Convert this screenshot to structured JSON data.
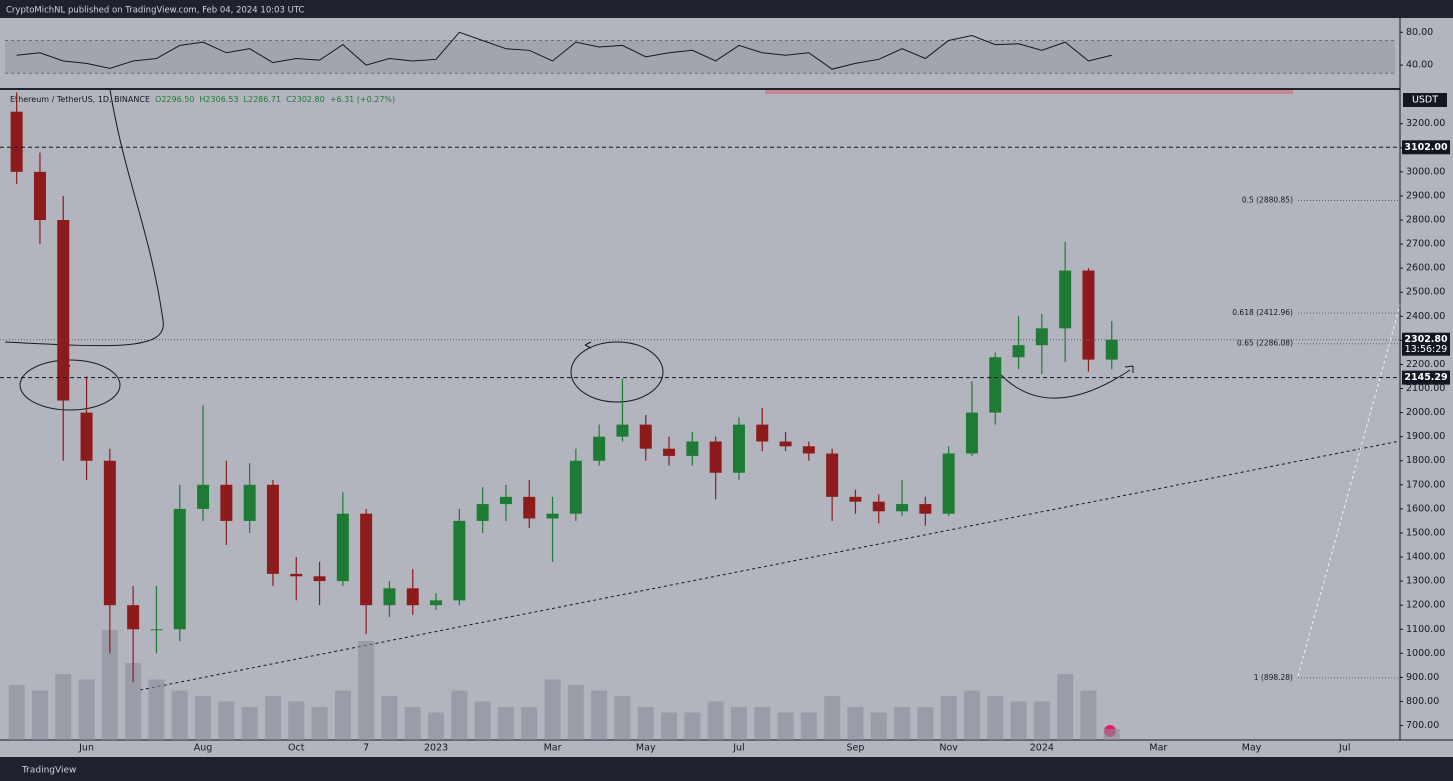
{
  "header": {
    "byline": "CryptoMichNL published on TradingView.com, Feb 04, 2024 10:03 UTC"
  },
  "footer": {
    "brand": "TradingView"
  },
  "chart_data": {
    "type": "candlestick",
    "legend": {
      "symbol": "Ethereum / TetherUS, 1D, BINANCE",
      "ohlc": [
        "O2296.50",
        "H2306.53",
        "L2286.71",
        "C2302.80",
        "+6.31 (+0.27%)"
      ]
    },
    "axis_unit": "USDT",
    "categories": [
      null,
      null,
      null,
      "Jun",
      null,
      null,
      null,
      null,
      "Aug",
      null,
      null,
      null,
      "Oct",
      null,
      null,
      "7",
      null,
      null,
      "2023",
      null,
      null,
      null,
      null,
      "Mar",
      null,
      null,
      null,
      "May",
      null,
      null,
      null,
      "Jul",
      null,
      null,
      null,
      null,
      "Sep",
      null,
      null,
      null,
      "Nov",
      null,
      null,
      null,
      "2024",
      null,
      null,
      null,
      null,
      "Mar",
      null,
      null,
      null,
      "May",
      null,
      null,
      null,
      "Jul",
      null,
      null
    ],
    "open": [
      3250,
      3000,
      2800,
      2000,
      1800,
      1200,
      1100,
      1100,
      1600,
      1700,
      1550,
      1700,
      1330,
      1320,
      1300,
      1580,
      1200,
      1270,
      1200,
      1220,
      1550,
      1620,
      1650,
      1560,
      1580,
      1800,
      1900,
      1950,
      1850,
      1820,
      1880,
      1750,
      1950,
      1880,
      1860,
      1830,
      1650,
      1630,
      1590,
      1620,
      1580,
      1830,
      2000,
      2230,
      2280,
      2350,
      2590,
      2220,
      null,
      null,
      null,
      null,
      null,
      null,
      null,
      null,
      null,
      null,
      null,
      null
    ],
    "high": [
      3330,
      3080,
      2900,
      2150,
      1850,
      1280,
      1280,
      1700,
      2030,
      1800,
      1790,
      1720,
      1400,
      1380,
      1670,
      1600,
      1300,
      1350,
      1250,
      1600,
      1690,
      1700,
      1720,
      1650,
      1850,
      1950,
      2140,
      1990,
      1900,
      1920,
      1900,
      1980,
      2020,
      1920,
      1880,
      1850,
      1680,
      1660,
      1720,
      1650,
      1860,
      2130,
      2250,
      2400,
      2410,
      2710,
      2600,
      2380,
      null,
      null,
      null,
      null,
      null,
      null,
      null,
      null,
      null,
      null,
      null,
      null
    ],
    "low": [
      2950,
      2700,
      1800,
      1720,
      1000,
      880,
      1000,
      1050,
      1550,
      1450,
      1500,
      1280,
      1220,
      1200,
      1280,
      1080,
      1150,
      1160,
      1180,
      1200,
      1500,
      1550,
      1520,
      1380,
      1550,
      1780,
      1880,
      1800,
      1780,
      1780,
      1640,
      1720,
      1840,
      1840,
      1800,
      1550,
      1580,
      1540,
      1570,
      1530,
      1570,
      1820,
      1950,
      2180,
      2160,
      2210,
      2170,
      2180,
      null,
      null,
      null,
      null,
      null,
      null,
      null,
      null,
      null,
      null,
      null,
      null
    ],
    "close": [
      3000,
      2800,
      2050,
      1800,
      1200,
      1100,
      1100,
      1600,
      1700,
      1550,
      1700,
      1330,
      1320,
      1300,
      1580,
      1200,
      1270,
      1200,
      1220,
      1550,
      1620,
      1650,
      1560,
      1580,
      1800,
      1900,
      1950,
      1850,
      1820,
      1880,
      1750,
      1950,
      1880,
      1860,
      1830,
      1650,
      1630,
      1590,
      1620,
      1580,
      1830,
      2000,
      2230,
      2280,
      2350,
      2590,
      2220,
      2302.8,
      null,
      null,
      null,
      null,
      null,
      null,
      null,
      null,
      null,
      null,
      null,
      null
    ],
    "volume": [
      50,
      45,
      60,
      55,
      100,
      70,
      55,
      45,
      40,
      35,
      30,
      40,
      35,
      30,
      45,
      90,
      40,
      30,
      25,
      45,
      35,
      30,
      30,
      55,
      50,
      45,
      40,
      30,
      25,
      25,
      35,
      30,
      30,
      25,
      25,
      40,
      30,
      25,
      30,
      30,
      40,
      45,
      40,
      35,
      35,
      60,
      45,
      10,
      null,
      null,
      null,
      null,
      null,
      null,
      null,
      null,
      null,
      null,
      null,
      null
    ],
    "up_color": "#1e7b34",
    "down_color": "#8e1b1b",
    "volume_color": "#8a8e98",
    "ylim": [
      640,
      3340
    ],
    "yticks": [
      {
        "value": 700,
        "label": "700.00"
      },
      {
        "value": 800,
        "label": "800.00"
      },
      {
        "value": 900,
        "label": "900.00"
      },
      {
        "value": 1000,
        "label": "1000.00"
      },
      {
        "value": 1100,
        "label": "1100.00"
      },
      {
        "value": 1200,
        "label": "1200.00"
      },
      {
        "value": 1300,
        "label": "1300.00"
      },
      {
        "value": 1400,
        "label": "1400.00"
      },
      {
        "value": 1500,
        "label": "1500.00"
      },
      {
        "value": 1600,
        "label": "1600.00"
      },
      {
        "value": 1700,
        "label": "1700.00"
      },
      {
        "value": 1800,
        "label": "1800.00"
      },
      {
        "value": 1900,
        "label": "1900.00"
      },
      {
        "value": 2000,
        "label": "2000.00"
      },
      {
        "value": 2100,
        "label": "2100.00"
      },
      {
        "value": 2200,
        "label": "2200.00"
      },
      {
        "value": 2300,
        "label": "2300.00"
      },
      {
        "value": 2400,
        "label": "2400.00"
      },
      {
        "value": 2500,
        "label": "2500.00"
      },
      {
        "value": 2600,
        "label": "2600.00"
      },
      {
        "value": 2700,
        "label": "2700.00"
      },
      {
        "value": 2800,
        "label": "2800.00"
      },
      {
        "value": 2900,
        "label": "2900.00"
      },
      {
        "value": 3000,
        "label": "3000.00"
      },
      {
        "value": 3100,
        "label": "3100.00"
      },
      {
        "value": 3200,
        "label": "3200.00"
      }
    ],
    "hlines": [
      {
        "value": 3102,
        "label": "3102.00"
      },
      {
        "value": 2145.29,
        "label": "2145.29"
      }
    ],
    "fib_levels": [
      {
        "value": 2880.85,
        "label": "0.5 (2880.85)"
      },
      {
        "value": 2412.96,
        "label": "0.618 (2412.96)"
      },
      {
        "value": 2286.08,
        "label": "0.65 (2286.08)"
      },
      {
        "value": 898.28,
        "label": "1 (898.28)"
      }
    ],
    "price_tag": {
      "value": 2302.8,
      "label": "2302.80",
      "countdown": "13:56:29"
    },
    "rsi": {
      "values": [
        52,
        55,
        45,
        42,
        36,
        45,
        48,
        64,
        68,
        55,
        60,
        43,
        48,
        46,
        65,
        40,
        48,
        45,
        47,
        80,
        70,
        60,
        58,
        45,
        68,
        62,
        64,
        50,
        55,
        58,
        45,
        64,
        55,
        52,
        55,
        35,
        42,
        47,
        60,
        48,
        70,
        76,
        65,
        66,
        58,
        68,
        45,
        52,
        null,
        null,
        null,
        null,
        null,
        null,
        null,
        null,
        null,
        null,
        null,
        null
      ],
      "ylim": [
        12,
        95
      ],
      "yticks": [
        {
          "value": 80,
          "label": "80.00"
        },
        {
          "value": 40,
          "label": "40.00"
        }
      ],
      "band": [
        30,
        70
      ]
    }
  }
}
